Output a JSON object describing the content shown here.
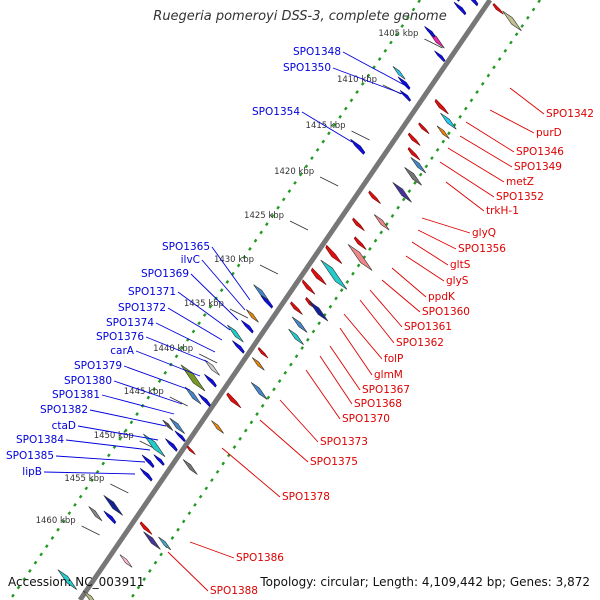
{
  "title": "Ruegeria pomeroyi DSS-3, complete genome",
  "accession": "Accession: NC_003911",
  "topology": "Topology: circular; Length: 4,109,442 bp; Genes: 3,872",
  "ticks": [
    "1405 kbp",
    "1410 kbp",
    "1415 kbp",
    "1420 kbp",
    "1425 kbp",
    "1430 kbp",
    "1435 kbp",
    "1440 kbp",
    "1445 kbp",
    "1450 kbp",
    "1455 kbp",
    "1460 kbp"
  ],
  "left_labels": [
    "SPO1348",
    "SPO1350",
    "SPO1354",
    "SPO1365",
    "ilvC",
    "SPO1369",
    "SPO1371",
    "SPO1372",
    "SPO1374",
    "SPO1376",
    "carA",
    "SPO1379",
    "SPO1380",
    "SPO1381",
    "SPO1382",
    "ctaD",
    "SPO1384",
    "SPO1385",
    "lipB"
  ],
  "right_labels": [
    "SPO1342",
    "purD",
    "SPO1346",
    "SPO1349",
    "metZ",
    "SPO1352",
    "trkH-1",
    "glyQ",
    "SPO1356",
    "gltS",
    "glyS",
    "ppdK",
    "SPO1360",
    "SPO1361",
    "SPO1362",
    "folP",
    "glmM",
    "SPO1367",
    "SPO1368",
    "SPO1370",
    "SPO1373",
    "SPO1375",
    "SPO1378",
    "SPO1386",
    "SPO1388"
  ],
  "colors": {
    "forward": "#0000dd",
    "reverse": "#dd0000",
    "backbone": "#777777",
    "dotted": "#229922"
  }
}
